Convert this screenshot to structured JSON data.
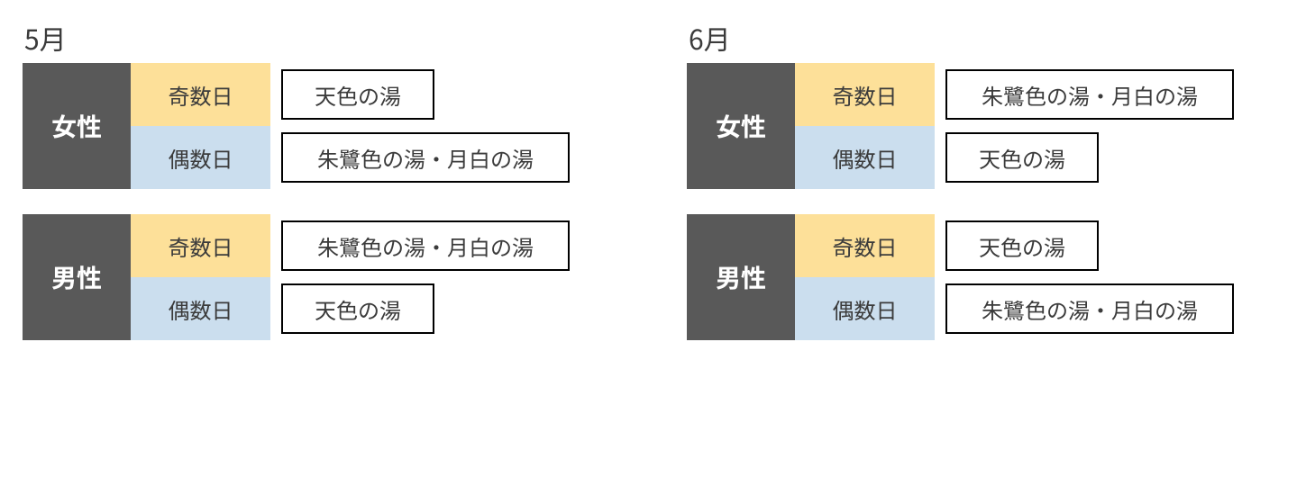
{
  "colors": {
    "gender_bg": "#595959",
    "gender_text": "#ffffff",
    "odd_bg": "#fde099",
    "even_bg": "#cbdeee",
    "text": "#3b3b3b",
    "border": "#000000",
    "background": "#ffffff"
  },
  "bath_width": {
    "short": 170,
    "long": 320
  },
  "months": [
    {
      "title": "5月",
      "groups": [
        {
          "gender": "女性",
          "rows": [
            {
              "daytype": "奇数日",
              "bath": "天色の湯",
              "len": "short"
            },
            {
              "daytype": "偶数日",
              "bath": "朱鷺色の湯・月白の湯",
              "len": "long"
            }
          ]
        },
        {
          "gender": "男性",
          "rows": [
            {
              "daytype": "奇数日",
              "bath": "朱鷺色の湯・月白の湯",
              "len": "long"
            },
            {
              "daytype": "偶数日",
              "bath": "天色の湯",
              "len": "short"
            }
          ]
        }
      ]
    },
    {
      "title": "6月",
      "groups": [
        {
          "gender": "女性",
          "rows": [
            {
              "daytype": "奇数日",
              "bath": "朱鷺色の湯・月白の湯",
              "len": "long"
            },
            {
              "daytype": "偶数日",
              "bath": "天色の湯",
              "len": "short"
            }
          ]
        },
        {
          "gender": "男性",
          "rows": [
            {
              "daytype": "奇数日",
              "bath": "天色の湯",
              "len": "short"
            },
            {
              "daytype": "偶数日",
              "bath": "朱鷺色の湯・月白の湯",
              "len": "long"
            }
          ]
        }
      ]
    }
  ]
}
